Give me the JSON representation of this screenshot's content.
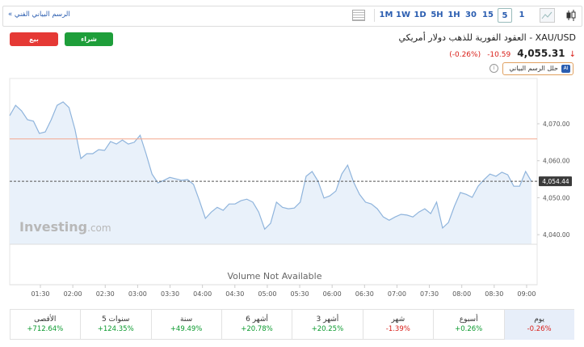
{
  "header": {
    "link": "الرسم البياني الفني »"
  },
  "toolbar": {
    "intervals": [
      "1M",
      "1W",
      "1D",
      "5H",
      "1H",
      "30",
      "15",
      "5",
      "1"
    ],
    "selected_index": 7
  },
  "buttons": {
    "sell": "بيع",
    "buy": "شراء",
    "analyze": "حلل الرسم البياني",
    "ai_badge": "AI"
  },
  "instrument": {
    "title": "XAU/USD - العقود الفورية للذهب دولار أمريكي",
    "price": "4,055.31",
    "change": "-10.59",
    "change_pct": "(-0.26%)"
  },
  "chart_data": {
    "type": "line",
    "color": "#8fb4dc",
    "fill": "#e9f1fa",
    "values": [
      4072.2,
      4075.0,
      4073.5,
      4071.1,
      4070.7,
      4067.4,
      4067.8,
      4071.1,
      4075.0,
      4075.9,
      4074.4,
      4068.5,
      4060.6,
      4061.9,
      4061.9,
      4063.0,
      4062.8,
      4065.2,
      4064.5,
      4065.6,
      4064.5,
      4065.0,
      4066.9,
      4061.9,
      4056.4,
      4054.0,
      4054.7,
      4055.5,
      4055.1,
      4054.7,
      4054.9,
      4053.6,
      4049.2,
      4044.4,
      4046.1,
      4047.4,
      4046.6,
      4048.3,
      4048.3,
      4049.2,
      4049.6,
      4048.8,
      4046.1,
      4041.5,
      4043.1,
      4048.8,
      4047.4,
      4047.0,
      4047.2,
      4048.8,
      4055.8,
      4057.1,
      4054.5,
      4049.9,
      4050.5,
      4051.8,
      4056.4,
      4058.8,
      4054.2,
      4050.9,
      4048.8,
      4048.3,
      4047.0,
      4044.8,
      4043.9,
      4044.8,
      4045.5,
      4045.3,
      4044.8,
      4046.1,
      4047.0,
      4045.7,
      4048.8,
      4041.8,
      4043.3,
      4047.7,
      4051.4,
      4050.9,
      4050.1,
      4053.1,
      4054.9,
      4056.4,
      4055.8,
      4056.9,
      4056.2,
      4053.1,
      4053.1,
      4057.1,
      4054.4
    ],
    "ylim": [
      4037.4,
      4081.6
    ],
    "yticks": [
      {
        "value": 4040,
        "label": "4,040.00"
      },
      {
        "value": 4050,
        "label": "4,050.00"
      },
      {
        "value": 4060,
        "label": "4,060.00"
      },
      {
        "value": 4070,
        "label": "4,070.00"
      }
    ],
    "x_labels": [
      "01:30",
      "02:00",
      "02:30",
      "03:00",
      "03:30",
      "04:00",
      "04:30",
      "05:00",
      "05:30",
      "06:00",
      "06:30",
      "07:00",
      "07:30",
      "08:00",
      "08:30",
      "09:00"
    ],
    "reference_line": {
      "value": 4065.9,
      "color": "#f4a88e"
    },
    "last_value": {
      "value": 4054.44,
      "label": "4,054.44"
    },
    "watermark": "Investing",
    "watermark_suffix": ".com",
    "volume_note": "Volume Not Available"
  },
  "performance": [
    {
      "period": "يوم",
      "change": "-0.26%"
    },
    {
      "period": "أسبوع",
      "change": "+0.26%"
    },
    {
      "period": "شهر",
      "change": "-1.39%"
    },
    {
      "period": "3 أشهر",
      "change": "+20.25%"
    },
    {
      "period": "6 أشهر",
      "change": "+20.78%"
    },
    {
      "period": "سنة",
      "change": "+49.49%"
    },
    {
      "period": "5 سنوات",
      "change": "+124.35%"
    },
    {
      "period": "الأقصى",
      "change": "+712.64%"
    }
  ]
}
